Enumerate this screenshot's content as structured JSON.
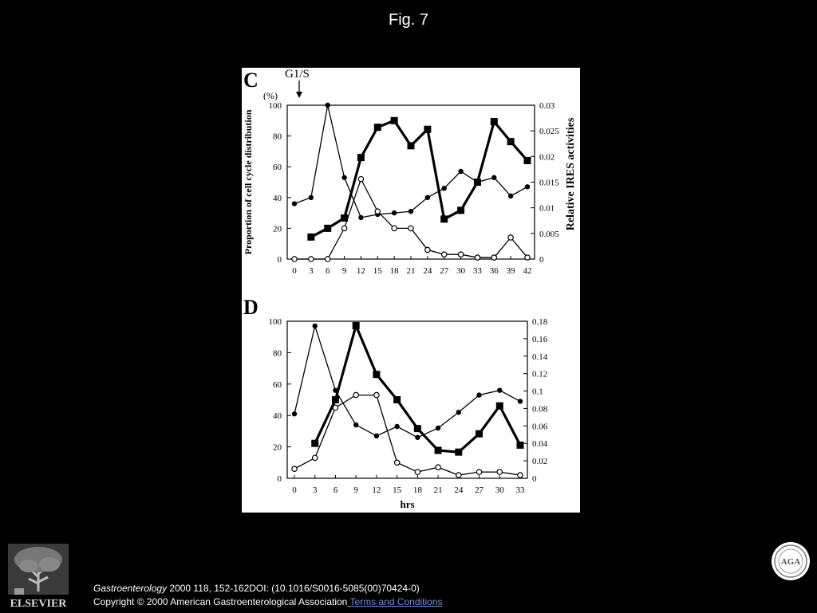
{
  "slide": {
    "title": "Fig. 7",
    "footer": {
      "journal": "Gastroenterology",
      "citation": " 2000 118, 152-162DOI: (10.1016/S0016-5085(00)70424-0)",
      "copyright": "Copyright © 2000 American Gastroenterological Association",
      "terms_link": " Terms and Conditions"
    },
    "logo_text": "ELSEVIER",
    "seal_text": "AGA",
    "colors": {
      "background": "#000000",
      "panel": "#ffffff",
      "link": "#6b8fd6"
    }
  },
  "chart_data": [
    {
      "type": "line",
      "panel_label": "C",
      "annotation": "G1/S",
      "x": [
        0,
        3,
        6,
        9,
        12,
        15,
        18,
        21,
        24,
        27,
        30,
        33,
        36,
        39,
        42
      ],
      "x_ticks": [
        "0",
        "3",
        "6",
        "9",
        "12",
        "15",
        "18",
        "21",
        "24",
        "27",
        "30",
        "33",
        "36",
        "39",
        "42"
      ],
      "xlabel": "",
      "ylabel": "Proportion of cell cycle distribution",
      "y_unit": "(%)",
      "ylim": [
        0,
        100
      ],
      "y_ticks": [
        "0",
        "20",
        "40",
        "60",
        "80",
        "100"
      ],
      "y2label": "Relative IRES activities",
      "y2lim": [
        0,
        0.03
      ],
      "y2_ticks": [
        "0",
        "0.005",
        "0.01",
        "0.015",
        "0.02",
        "0.025",
        "0.03"
      ],
      "series": [
        {
          "marker": "filled-circle",
          "axis": "left",
          "values": [
            36,
            40,
            100,
            53,
            27,
            29,
            30,
            31,
            40,
            46,
            57,
            50,
            53,
            41,
            47
          ]
        },
        {
          "marker": "open-circle",
          "axis": "left",
          "values": [
            0,
            0,
            0,
            20,
            52,
            31,
            20,
            20,
            6,
            3,
            3,
            1,
            1,
            14,
            1
          ]
        },
        {
          "marker": "filled-square",
          "axis": "right",
          "values": [
            null,
            0.0043,
            0.006,
            0.008,
            0.0198,
            0.0257,
            0.027,
            0.0221,
            0.0253,
            0.0078,
            0.0095,
            0.015,
            0.0268,
            0.0229,
            0.0192
          ]
        }
      ]
    },
    {
      "type": "line",
      "panel_label": "D",
      "x": [
        0,
        3,
        6,
        9,
        12,
        15,
        18,
        21,
        24,
        27,
        30,
        33
      ],
      "x_ticks": [
        "0",
        "3",
        "6",
        "9",
        "12",
        "15",
        "18",
        "21",
        "24",
        "27",
        "30",
        "33"
      ],
      "xlabel": "hrs",
      "ylim": [
        0,
        100
      ],
      "y_ticks": [
        "0",
        "20",
        "40",
        "60",
        "80",
        "100"
      ],
      "y2lim": [
        0,
        0.18
      ],
      "y2_ticks": [
        "0",
        "0.02",
        "0.04",
        "0.06",
        "0.08",
        "0.1",
        "0.12",
        "0.14",
        "0.16",
        "0.18"
      ],
      "series": [
        {
          "marker": "filled-circle",
          "axis": "left",
          "values": [
            41,
            97,
            56,
            34,
            27,
            33,
            26,
            32,
            42,
            53,
            56,
            49
          ]
        },
        {
          "marker": "open-circle",
          "axis": "left",
          "values": [
            6,
            13,
            45,
            53,
            53,
            10,
            4,
            7,
            2,
            4,
            4,
            2
          ]
        },
        {
          "marker": "filled-square",
          "axis": "right",
          "values": [
            null,
            0.04,
            0.09,
            0.175,
            0.119,
            0.09,
            0.057,
            0.032,
            0.03,
            0.051,
            0.083,
            0.038
          ]
        }
      ]
    }
  ]
}
